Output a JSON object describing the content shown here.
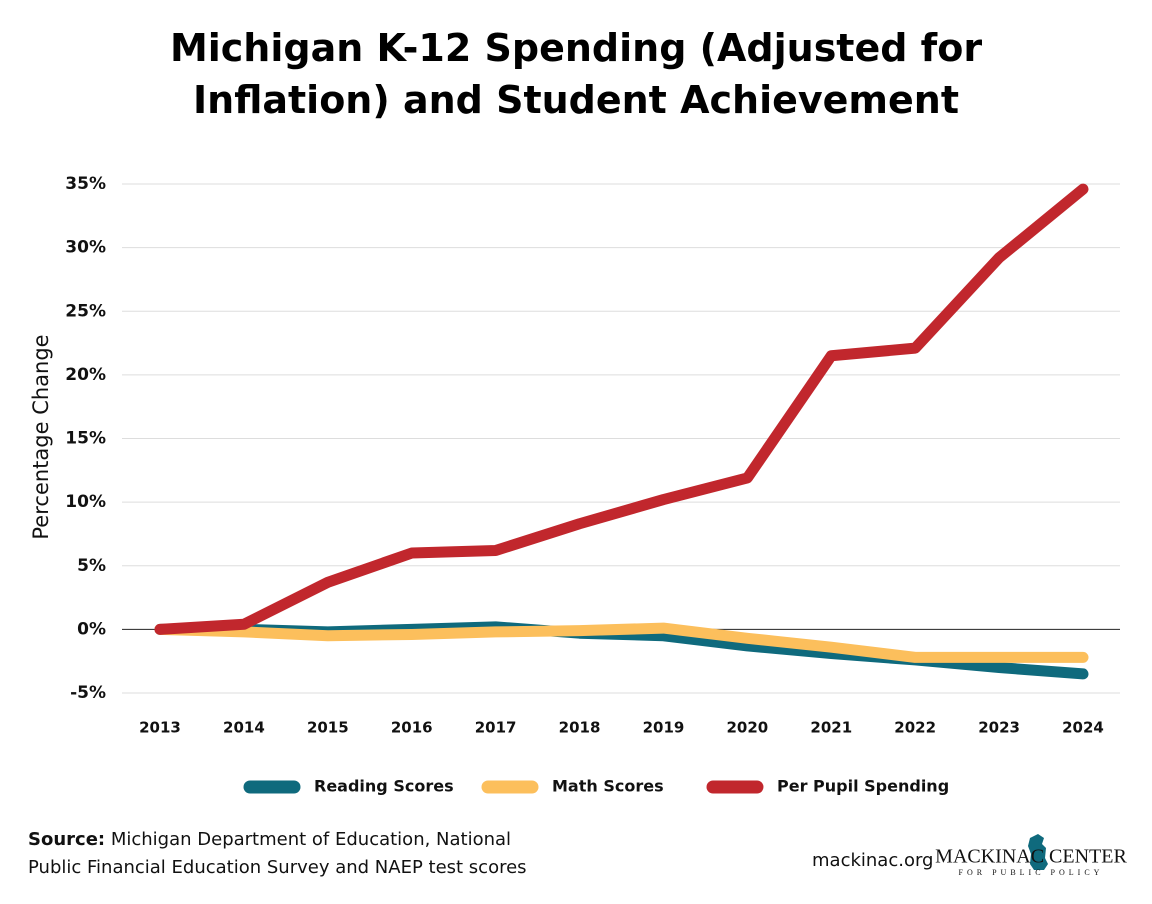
{
  "chart_data": {
    "type": "line",
    "title": "Michigan K-12 Spending (Adjusted for Inflation) and Student Achievement",
    "y_label": "Percentage Change",
    "categories": [
      "2013",
      "2014",
      "2015",
      "2016",
      "2017",
      "2018",
      "2019",
      "2020",
      "2021",
      "2022",
      "2023",
      "2024"
    ],
    "series": [
      {
        "name": "Reading Scores",
        "color": "#0f6a7d",
        "values": [
          0,
          0,
          -0.2,
          0,
          0.2,
          -0.3,
          -0.5,
          -1.3,
          -1.9,
          -2.4,
          -3.0,
          -3.5
        ]
      },
      {
        "name": "Math Scores",
        "color": "#fcbf5c",
        "values": [
          0,
          -0.2,
          -0.5,
          -0.4,
          -0.2,
          -0.1,
          0.1,
          -0.7,
          -1.4,
          -2.2,
          -2.2,
          -2.2
        ]
      },
      {
        "name": "Per Pupil Spending",
        "color": "#c1272d",
        "values": [
          0,
          0.4,
          3.7,
          6.0,
          6.2,
          8.3,
          10.2,
          11.9,
          21.5,
          22.1,
          29.2,
          34.6
        ]
      }
    ],
    "ylim": [
      -5,
      35
    ],
    "yticks": [
      {
        "value": -5,
        "label": "-5%"
      },
      {
        "value": 0,
        "label": "0%"
      },
      {
        "value": 5,
        "label": "5%"
      },
      {
        "value": 10,
        "label": "10%"
      },
      {
        "value": 15,
        "label": "15%"
      },
      {
        "value": 20,
        "label": "20%"
      },
      {
        "value": 25,
        "label": "25%"
      },
      {
        "value": 30,
        "label": "30%"
      },
      {
        "value": 35,
        "label": "35%"
      }
    ],
    "grid": true,
    "legend": "bottom"
  },
  "footer": {
    "source_label": "Source:",
    "source_text": "Michigan Department of Education, National Public Financial Education Survey and NAEP test scores",
    "website": "mackinac.org",
    "logo_name": "MACKINAC CENTER",
    "logo_tagline": "FOR PUBLIC POLICY"
  }
}
